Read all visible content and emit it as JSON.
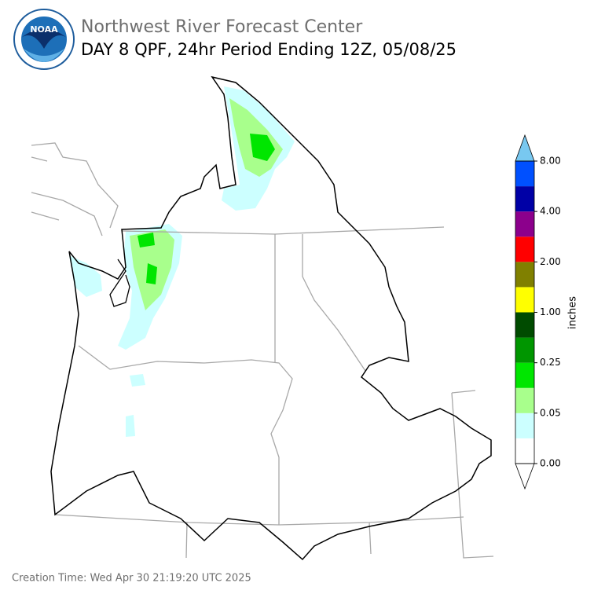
{
  "logo": {
    "text": "NOAA"
  },
  "header": {
    "title": "Northwest River Forecast Center",
    "subtitle": "DAY 8 QPF, 24hr Period Ending 12Z, 05/08/25"
  },
  "colorbar": {
    "label": "inches",
    "ticks": [
      "0.00",
      "0.05",
      "0.25",
      "1.00",
      "2.00",
      "4.00",
      "8.00"
    ],
    "colors": [
      "#ffffff",
      "#ccffff",
      "#a8ff8c",
      "#00e600",
      "#009600",
      "#004b00",
      "#ffff00",
      "#808000",
      "#ff0000",
      "#8c008c",
      "#0000a6",
      "#0050ff"
    ],
    "over_color": "#78c8f0",
    "under_color": "#ffffff"
  },
  "footer": {
    "creation_time": "Creation Time: Wed Apr 30 21:19:20 UTC 2025"
  }
}
